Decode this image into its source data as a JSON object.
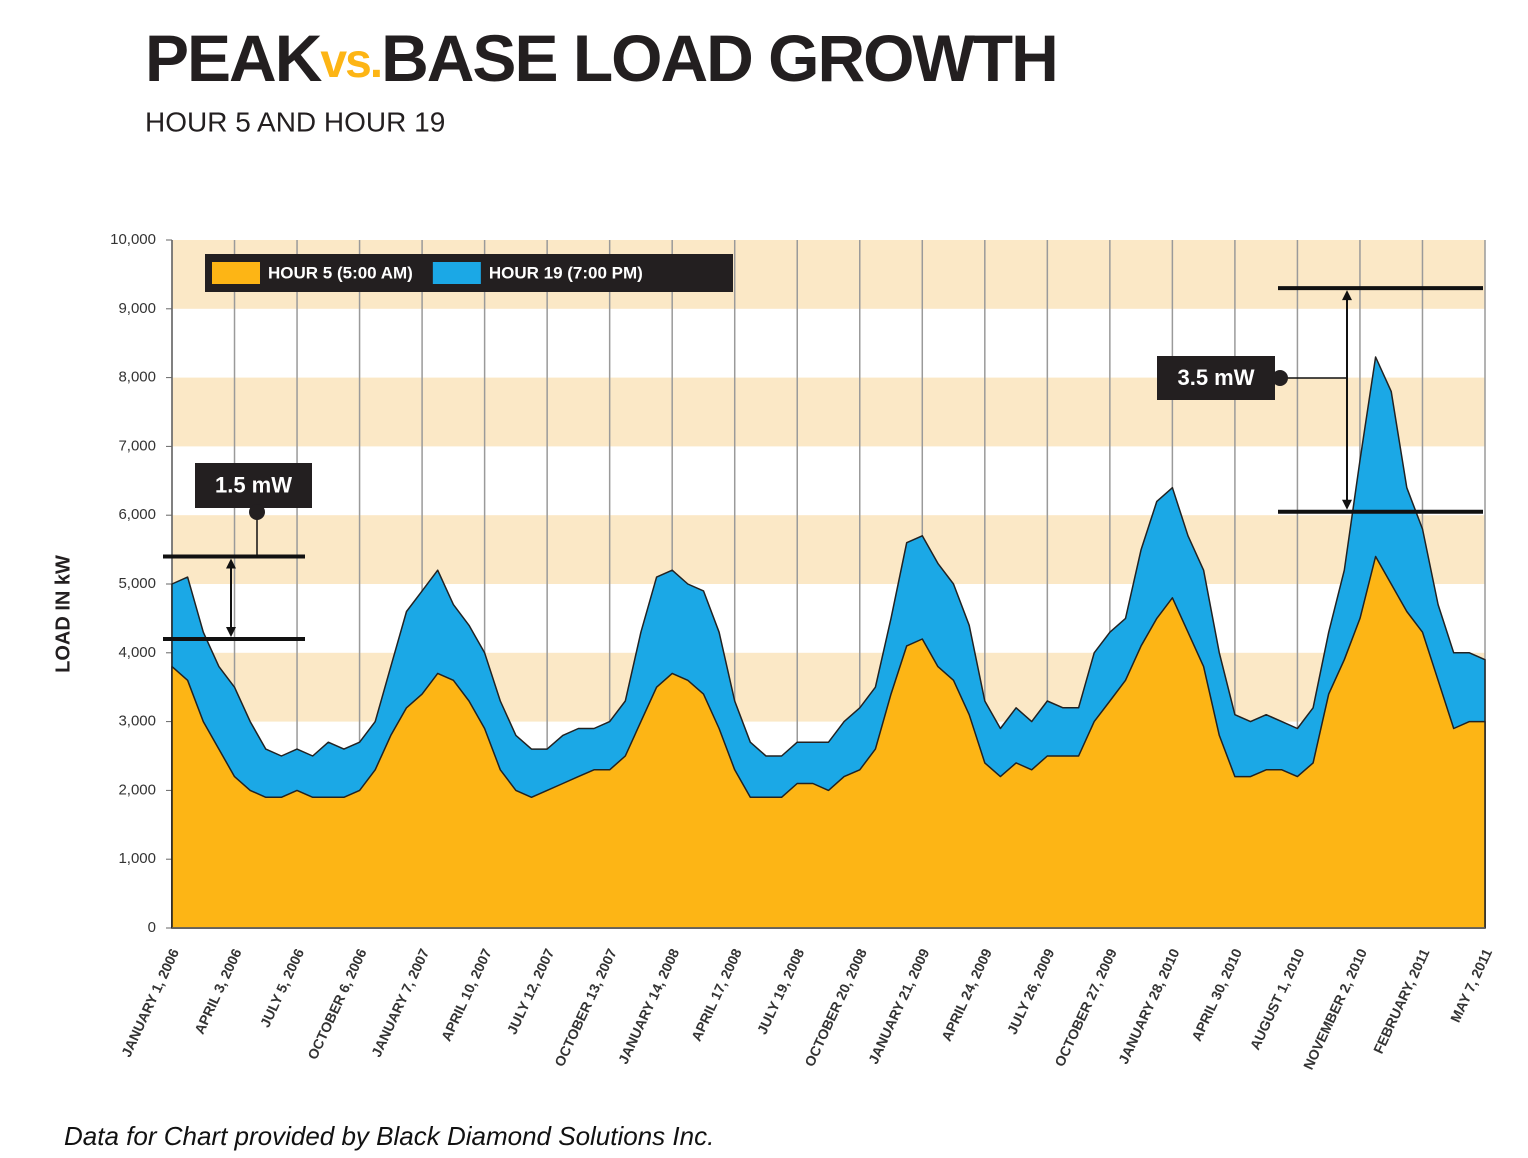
{
  "chart_data": {
    "type": "area",
    "title": [
      "PEAK",
      "vs.",
      "BASE LOAD GROWTH"
    ],
    "subtitle": "HOUR 5 AND HOUR 19",
    "y_label": "LOAD IN kW",
    "source": "Data for Chart provided by Black Diamond Solutions Inc.",
    "categories": [
      "JANUARY 1, 2006",
      null,
      null,
      null,
      "APRIL 3, 2006",
      null,
      null,
      null,
      "JULY 5, 2006",
      null,
      null,
      null,
      "OCTOBER 6, 2006",
      null,
      null,
      null,
      "JANUARY 7, 2007",
      null,
      null,
      null,
      "APRIL 10, 2007",
      null,
      null,
      null,
      "JULY 12, 2007",
      null,
      null,
      null,
      "OCTOBER 13, 2007",
      null,
      null,
      null,
      "JANUARY 14, 2008",
      null,
      null,
      null,
      "APRIL 17, 2008",
      null,
      null,
      null,
      "JULY 19, 2008",
      null,
      null,
      null,
      "OCTOBER 20, 2008",
      null,
      null,
      null,
      "JANUARY 21, 2009",
      null,
      null,
      null,
      "APRIL 24, 2009",
      null,
      null,
      null,
      "JULY 26, 2009",
      null,
      null,
      null,
      "OCTOBER 27, 2009",
      null,
      null,
      null,
      "JANUARY 28, 2010",
      null,
      null,
      null,
      "APRIL 30, 2010",
      null,
      null,
      null,
      "AUGUST 1, 2010",
      null,
      null,
      null,
      "NOVEMBER 2, 2010",
      null,
      null,
      null,
      "FEBRUARY, 2011",
      null,
      null,
      null,
      "MAY 7, 2011"
    ],
    "series": [
      {
        "name": "HOUR 19 (7:00 PM)",
        "color": "#1ba8e6",
        "values": [
          5000,
          5100,
          4300,
          3800,
          3500,
          3000,
          2600,
          2500,
          2600,
          2500,
          2700,
          2600,
          2700,
          3000,
          3800,
          4600,
          4900,
          5200,
          4700,
          4400,
          4000,
          3300,
          2800,
          2600,
          2600,
          2800,
          2900,
          2900,
          3000,
          3300,
          4300,
          5100,
          5200,
          5000,
          4900,
          4300,
          3300,
          2700,
          2500,
          2500,
          2700,
          2700,
          2700,
          3000,
          3200,
          3500,
          4500,
          5600,
          5700,
          5300,
          5000,
          4400,
          3300,
          2900,
          3200,
          3000,
          3300,
          3200,
          3200,
          4000,
          4300,
          4500,
          5500,
          6200,
          6400,
          5700,
          5200,
          4000,
          3100,
          3000,
          3100,
          3000,
          2900,
          3200,
          4300,
          5200,
          6800,
          8300,
          7800,
          6400,
          5800,
          4700,
          4000,
          4000,
          3900
        ]
      },
      {
        "name": "HOUR 5 (5:00 AM)",
        "color": "#fdb515",
        "values": [
          3800,
          3600,
          3000,
          2600,
          2200,
          2000,
          1900,
          1900,
          2000,
          1900,
          1900,
          1900,
          2000,
          2300,
          2800,
          3200,
          3400,
          3700,
          3600,
          3300,
          2900,
          2300,
          2000,
          1900,
          2000,
          2100,
          2200,
          2300,
          2300,
          2500,
          3000,
          3500,
          3700,
          3600,
          3400,
          2900,
          2300,
          1900,
          1900,
          1900,
          2100,
          2100,
          2000,
          2200,
          2300,
          2600,
          3400,
          4100,
          4200,
          3800,
          3600,
          3100,
          2400,
          2200,
          2400,
          2300,
          2500,
          2500,
          2500,
          3000,
          3300,
          3600,
          4100,
          4500,
          4800,
          4300,
          3800,
          2800,
          2200,
          2200,
          2300,
          2300,
          2200,
          2400,
          3400,
          3900,
          4500,
          5400,
          5000,
          4600,
          4300,
          3600,
          2900,
          3000,
          3000
        ]
      }
    ],
    "legend_order": [
      1,
      0
    ],
    "ylim": [
      0,
      10000
    ],
    "yticks": [
      0,
      {
        "value": 1000,
        "label": "1,000"
      },
      {
        "value": 2000,
        "label": "2,000"
      },
      {
        "value": 3000,
        "label": "3,000"
      },
      {
        "value": 4000,
        "label": "4,000"
      },
      {
        "value": 5000,
        "label": "5,000"
      },
      {
        "value": 6000,
        "label": "6,000"
      },
      {
        "value": 7000,
        "label": "7,000"
      },
      {
        "value": 8000,
        "label": "8,000"
      },
      {
        "value": 9000,
        "label": "9,000"
      },
      {
        "value": 10000,
        "label": "10,000"
      }
    ],
    "annotations": [
      {
        "text": "1.5 mW",
        "low": 4200,
        "high": 5400
      },
      {
        "text": "3.5 mW",
        "low": 6050,
        "high": 9300
      }
    ]
  }
}
